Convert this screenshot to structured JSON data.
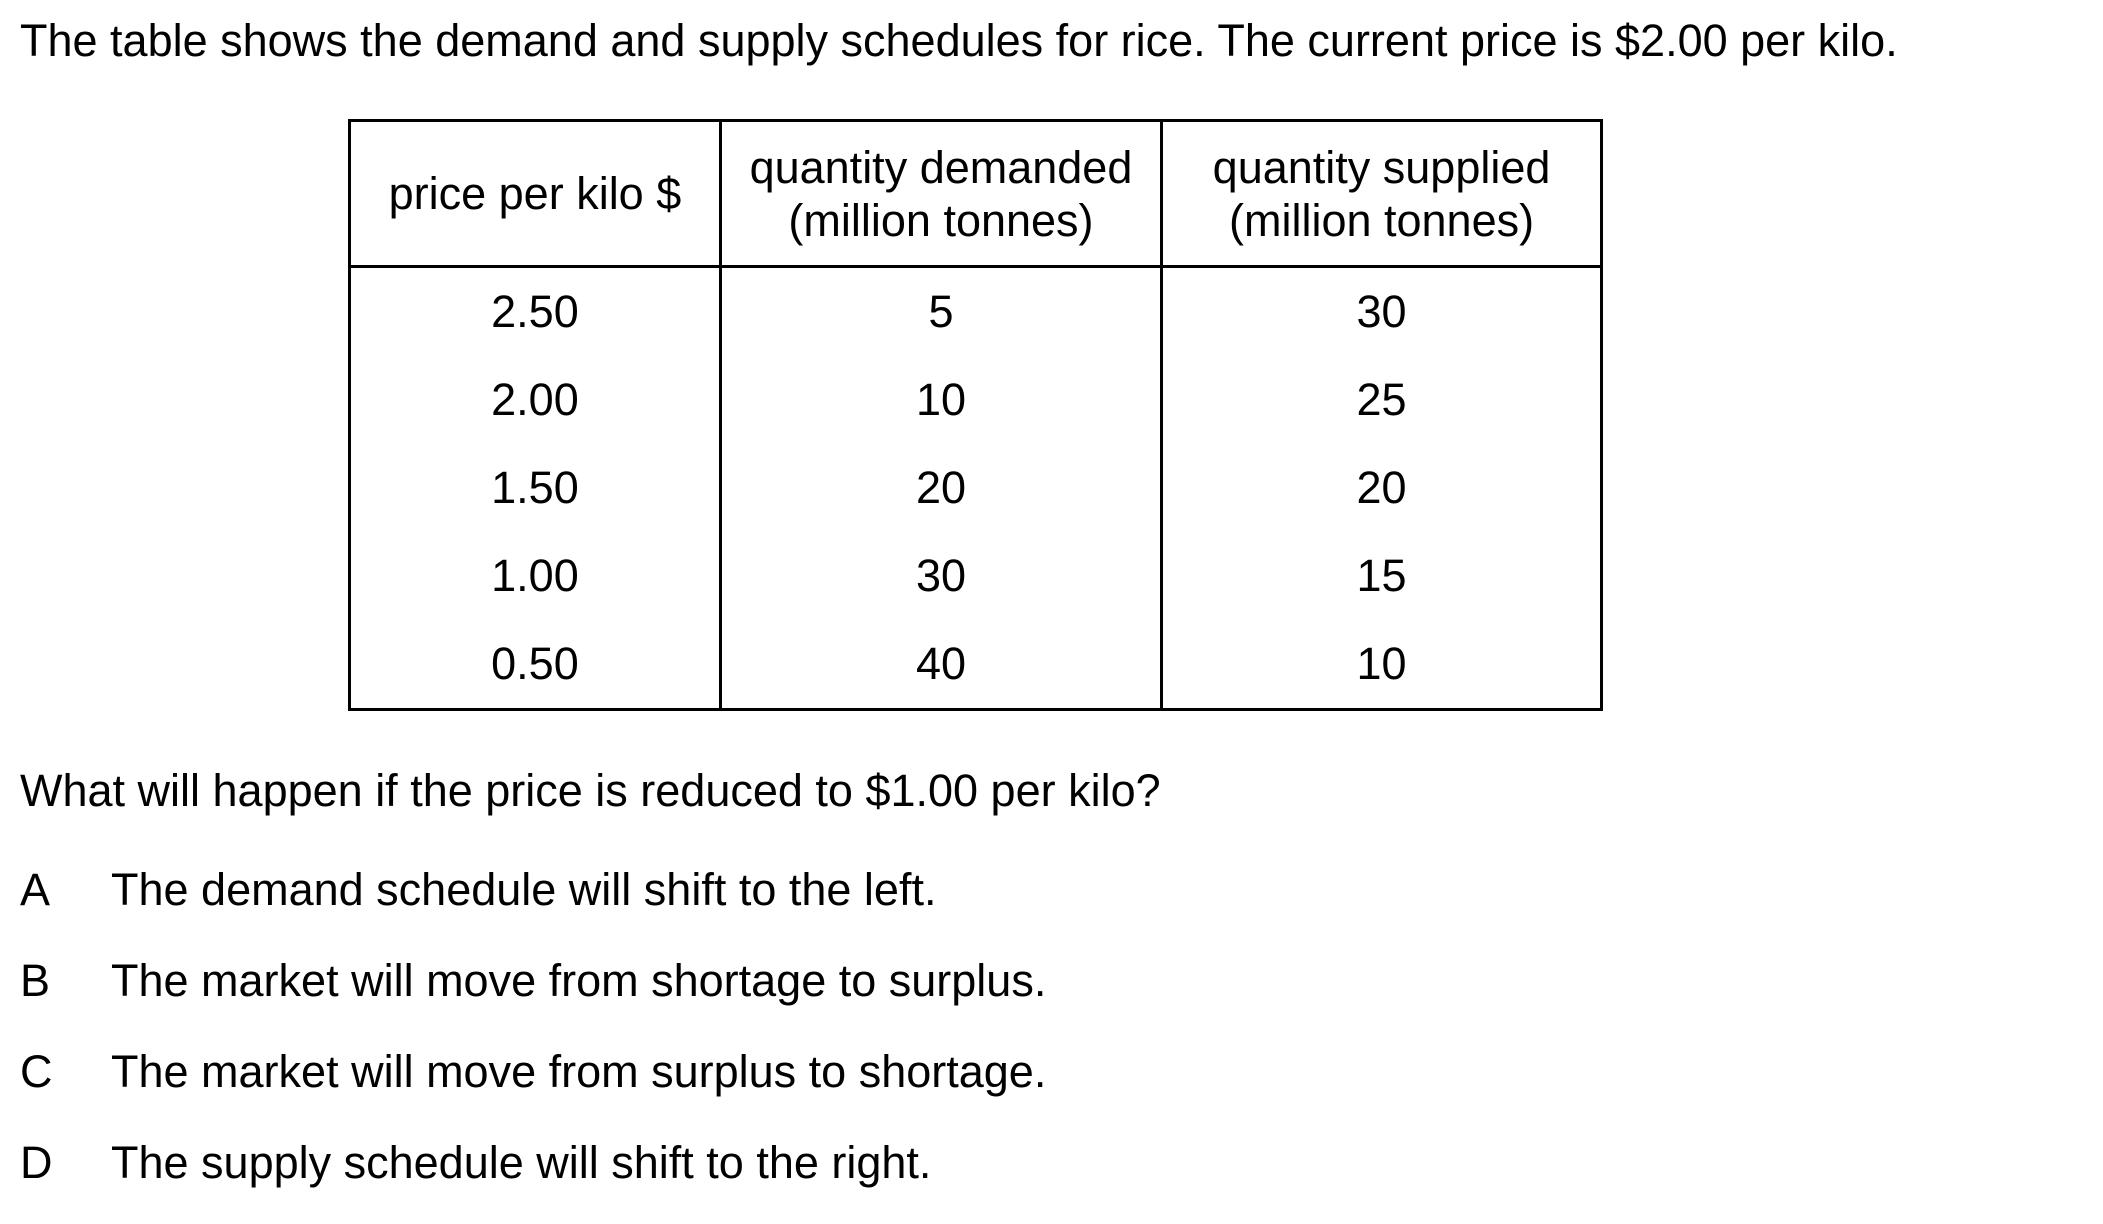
{
  "intro": "The table shows the demand and supply schedules for rice. The current price is $2.00 per kilo.",
  "table": {
    "headers": [
      {
        "line1": "price per kilo $",
        "line2": ""
      },
      {
        "line1": "quantity demanded",
        "line2": "(million tonnes)"
      },
      {
        "line1": "quantity supplied",
        "line2": "(million tonnes)"
      }
    ],
    "rows": [
      {
        "price": "2.50",
        "demanded": "5",
        "supplied": "30"
      },
      {
        "price": "2.00",
        "demanded": "10",
        "supplied": "25"
      },
      {
        "price": "1.50",
        "demanded": "20",
        "supplied": "20"
      },
      {
        "price": "1.00",
        "demanded": "30",
        "supplied": "15"
      },
      {
        "price": "0.50",
        "demanded": "40",
        "supplied": "10"
      }
    ]
  },
  "question": "What will happen if the price is reduced to $1.00 per kilo?",
  "options": [
    {
      "letter": "A",
      "text": "The demand schedule will shift to the left."
    },
    {
      "letter": "B",
      "text": "The market will move from shortage to surplus."
    },
    {
      "letter": "C",
      "text": "The market will move from surplus to shortage."
    },
    {
      "letter": "D",
      "text": "The supply schedule will shift to the right."
    }
  ]
}
